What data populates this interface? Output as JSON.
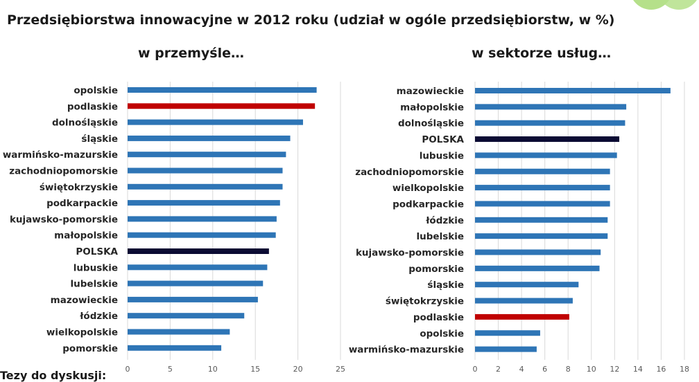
{
  "title": "Przedsiębiorstwa innowacyjne w 2012 roku (udział w ogóle przedsiębiorstw, w %)",
  "subtitles": {
    "left": "w przemyśle…",
    "right": "w sektorze usług…"
  },
  "footer": "Tezy do dyskusji:",
  "colors": {
    "default_bar": "#2e75b6",
    "highlight_bar": "#c00000",
    "national_bar": "#0b0b33",
    "grid": "#d9d9d9",
    "decor": "#b5e08a"
  },
  "chart_data": [
    {
      "type": "bar",
      "orientation": "horizontal",
      "title": "w przemyśle…",
      "categories": [
        "opolskie",
        "podlaskie",
        "dolnośląskie",
        "śląskie",
        "warmińsko-mazurskie",
        "zachodniopomorskie",
        "świętokrzyskie",
        "podkarpackie",
        "kujawsko-pomorskie",
        "małopolskie",
        "POLSKA",
        "lubuskie",
        "lubelskie",
        "mazowieckie",
        "łódzkie",
        "wielkopolskie",
        "pomorskie"
      ],
      "values": [
        22.2,
        22.0,
        20.6,
        19.1,
        18.6,
        18.2,
        18.2,
        17.9,
        17.5,
        17.4,
        16.6,
        16.4,
        15.9,
        15.3,
        13.7,
        12.0,
        11.0
      ],
      "highlight": {
        "podlaskie": "#c00000",
        "POLSKA": "#0b0b33"
      },
      "xlim": [
        0,
        25
      ],
      "xticks": [
        0,
        5,
        10,
        15,
        20,
        25
      ],
      "grid": true,
      "xlabel": "",
      "ylabel": ""
    },
    {
      "type": "bar",
      "orientation": "horizontal",
      "title": "w sektorze usług…",
      "categories": [
        "mazowieckie",
        "małopolskie",
        "dolnośląskie",
        "POLSKA",
        "lubuskie",
        "zachodniopomorskie",
        "wielkopolskie",
        "podkarpackie",
        "łódzkie",
        "lubelskie",
        "kujawsko-pomorskie",
        "pomorskie",
        "śląskie",
        "świętokrzyskie",
        "podlaskie",
        "opolskie",
        "warmińsko-mazurskie"
      ],
      "values": [
        16.8,
        13.0,
        12.9,
        12.4,
        12.2,
        11.6,
        11.6,
        11.6,
        11.4,
        11.4,
        10.8,
        10.7,
        8.9,
        8.4,
        8.1,
        5.6,
        5.3
      ],
      "highlight": {
        "podlaskie": "#c00000",
        "POLSKA": "#0b0b33"
      },
      "xlim": [
        0,
        18
      ],
      "xticks": [
        0,
        2,
        4,
        6,
        8,
        10,
        12,
        14,
        16,
        18
      ],
      "grid": true,
      "xlabel": "",
      "ylabel": ""
    }
  ]
}
